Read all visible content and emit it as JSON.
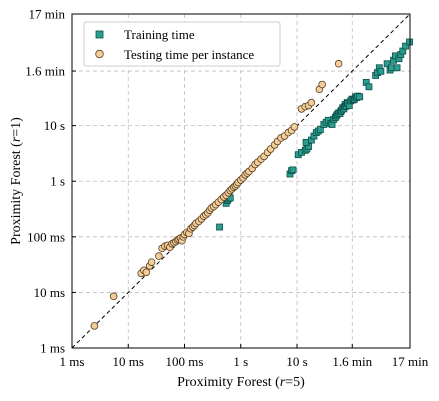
{
  "chart_data": {
    "type": "scatter",
    "x_scale": "log",
    "y_scale": "log",
    "xlabel": "Proximity Forest (r=5)",
    "ylabel": "Proximity Forest (r=1)",
    "xlim_seconds": [
      0.001,
      1020
    ],
    "ylim_seconds": [
      0.001,
      1020
    ],
    "ticks": [
      {
        "value_seconds": 0.001,
        "label": "1 ms"
      },
      {
        "value_seconds": 0.01,
        "label": "10 ms"
      },
      {
        "value_seconds": 0.1,
        "label": "100 ms"
      },
      {
        "value_seconds": 1,
        "label": "1 s"
      },
      {
        "value_seconds": 10,
        "label": "10 s"
      },
      {
        "value_seconds": 96,
        "label": "1.6 min"
      },
      {
        "value_seconds": 1020,
        "label": "17 min"
      }
    ],
    "grid": true,
    "diagonal": "y = x (dashed)",
    "legend": {
      "placement": "top-left"
    },
    "series": [
      {
        "name": "Training time",
        "marker": "square",
        "color": "#2a9d8f",
        "points": [
          [
            0.42,
            0.15
          ],
          [
            0.55,
            0.4
          ],
          [
            0.58,
            0.45
          ],
          [
            0.6,
            0.48
          ],
          [
            0.62,
            0.52
          ],
          [
            0.65,
            0.5
          ],
          [
            7.5,
            1.35
          ],
          [
            8.0,
            1.55
          ],
          [
            8.5,
            1.6
          ],
          [
            10.5,
            3.0
          ],
          [
            12.0,
            3.3
          ],
          [
            14.0,
            3.6
          ],
          [
            15.0,
            3.8
          ],
          [
            16.0,
            4.2
          ],
          [
            14.5,
            5.0
          ],
          [
            18.0,
            5.5
          ],
          [
            20.0,
            6.5
          ],
          [
            22.0,
            7.5
          ],
          [
            24.0,
            8.0
          ],
          [
            26.0,
            8.5
          ],
          [
            30.0,
            10.5
          ],
          [
            33.0,
            11.5
          ],
          [
            36.0,
            12.5
          ],
          [
            40.0,
            11.0
          ],
          [
            42.0,
            10.5
          ],
          [
            45.0,
            13.0
          ],
          [
            48.0,
            14.0
          ],
          [
            50.0,
            15.0
          ],
          [
            52.0,
            16.0
          ],
          [
            55.0,
            17.0
          ],
          [
            58.0,
            16.5
          ],
          [
            60.0,
            18.0
          ],
          [
            62.0,
            19.0
          ],
          [
            65.0,
            21.0
          ],
          [
            68.0,
            20.0
          ],
          [
            70.0,
            22.0
          ],
          [
            72.0,
            24.0
          ],
          [
            75.0,
            22.5
          ],
          [
            78.0,
            26.0
          ],
          [
            80.0,
            25.0
          ],
          [
            85.0,
            23.0
          ],
          [
            90.0,
            28.0
          ],
          [
            95.0,
            30.0
          ],
          [
            100.0,
            29.0
          ],
          [
            105.0,
            30.0
          ],
          [
            110.0,
            33.0
          ],
          [
            115.0,
            32.0
          ],
          [
            120.0,
            34.0
          ],
          [
            130.0,
            33.0
          ],
          [
            170.0,
            60.0
          ],
          [
            190.0,
            50.0
          ],
          [
            250.0,
            80.0
          ],
          [
            270.0,
            90.0
          ],
          [
            290.0,
            110.0
          ],
          [
            310.0,
            95.0
          ],
          [
            400.0,
            130.0
          ],
          [
            450.0,
            100.0
          ],
          [
            480.0,
            110.0
          ],
          [
            520.0,
            150.0
          ],
          [
            560.0,
            180.0
          ],
          [
            600.0,
            110.0
          ],
          [
            650.0,
            160.0
          ],
          [
            700.0,
            190.0
          ],
          [
            760.0,
            220.0
          ],
          [
            850.0,
            270.0
          ],
          [
            1000.0,
            320.0
          ]
        ]
      },
      {
        "name": "Testing time per instance",
        "marker": "circle",
        "color": "#f2ce9a",
        "points": [
          [
            0.0025,
            0.0025
          ],
          [
            0.0055,
            0.0085
          ],
          [
            0.017,
            0.022
          ],
          [
            0.019,
            0.025
          ],
          [
            0.021,
            0.023
          ],
          [
            0.024,
            0.03
          ],
          [
            0.026,
            0.035
          ],
          [
            0.035,
            0.045
          ],
          [
            0.04,
            0.062
          ],
          [
            0.045,
            0.068
          ],
          [
            0.05,
            0.07
          ],
          [
            0.055,
            0.065
          ],
          [
            0.06,
            0.075
          ],
          [
            0.065,
            0.078
          ],
          [
            0.07,
            0.082
          ],
          [
            0.075,
            0.088
          ],
          [
            0.08,
            0.09
          ],
          [
            0.085,
            0.095
          ],
          [
            0.09,
            0.085
          ],
          [
            0.095,
            0.1
          ],
          [
            0.1,
            0.11
          ],
          [
            0.11,
            0.12
          ],
          [
            0.12,
            0.115
          ],
          [
            0.13,
            0.14
          ],
          [
            0.14,
            0.15
          ],
          [
            0.15,
            0.16
          ],
          [
            0.16,
            0.175
          ],
          [
            0.18,
            0.19
          ],
          [
            0.2,
            0.21
          ],
          [
            0.22,
            0.235
          ],
          [
            0.24,
            0.25
          ],
          [
            0.26,
            0.27
          ],
          [
            0.28,
            0.3
          ],
          [
            0.3,
            0.33
          ],
          [
            0.33,
            0.35
          ],
          [
            0.36,
            0.38
          ],
          [
            0.4,
            0.42
          ],
          [
            0.45,
            0.47
          ],
          [
            0.5,
            0.52
          ],
          [
            0.55,
            0.56
          ],
          [
            0.6,
            0.62
          ],
          [
            0.65,
            0.68
          ],
          [
            0.7,
            0.73
          ],
          [
            0.75,
            0.78
          ],
          [
            0.8,
            0.82
          ],
          [
            0.85,
            0.88
          ],
          [
            0.9,
            0.95
          ],
          [
            1.0,
            1.05
          ],
          [
            1.1,
            1.15
          ],
          [
            1.2,
            1.3
          ],
          [
            1.3,
            1.4
          ],
          [
            1.4,
            1.5
          ],
          [
            1.6,
            1.7
          ],
          [
            1.8,
            2.0
          ],
          [
            2.0,
            2.2
          ],
          [
            2.3,
            2.5
          ],
          [
            2.6,
            2.8
          ],
          [
            3.0,
            3.3
          ],
          [
            3.4,
            3.8
          ],
          [
            4.0,
            4.5
          ],
          [
            4.5,
            5.2
          ],
          [
            5.2,
            6.0
          ],
          [
            6.0,
            6.5
          ],
          [
            7.0,
            7.5
          ],
          [
            8.0,
            8.2
          ],
          [
            9.0,
            9.5
          ],
          [
            12.0,
            20.0
          ],
          [
            14.0,
            22.0
          ],
          [
            16.0,
            23.0
          ],
          [
            18.0,
            26.0
          ],
          [
            25.0,
            45.0
          ],
          [
            28.0,
            55.0
          ],
          [
            55.0,
            130.0
          ]
        ]
      }
    ]
  },
  "legend_items": [
    {
      "label": "Training time"
    },
    {
      "label": "Testing time per instance"
    }
  ]
}
